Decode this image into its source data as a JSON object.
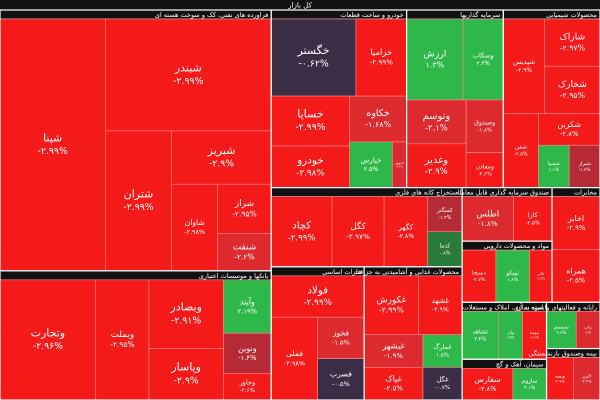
{
  "chart_data": {
    "type": "treemap",
    "title": "کل بازار",
    "sectors": [
      {
        "name": "فراورده های نفتی، کک و سوخت هسته ای",
        "tiles": [
          {
            "label": "شپنا",
            "size": 20,
            "change": -2.99,
            "value_label": "-۲.۹۹%"
          },
          {
            "label": "شبندر",
            "size": 14,
            "change": -2.99,
            "value_label": "-۲.۹۹%"
          },
          {
            "label": "شتران",
            "size": 7,
            "change": -2.99,
            "value_label": "-۲.۹۹%"
          },
          {
            "label": "شبریز",
            "size": 4,
            "change": -2.9,
            "value_label": "-۲.۹%"
          },
          {
            "label": "شاوان",
            "size": 3,
            "change": -2.98,
            "value_label": "-۲.۹۸%"
          },
          {
            "label": "شراز",
            "size": 2,
            "change": -2.95,
            "value_label": "-۲.۹۵%"
          },
          {
            "label": "شنفت",
            "size": 1.5,
            "change": -2.2,
            "value_label": "-۲.۲%"
          }
        ]
      },
      {
        "name": "بانکها و موسسات اعتباری",
        "tiles": [
          {
            "label": "وتجارت",
            "size": 9,
            "change": -2.96,
            "value_label": "-۲.۹۶%"
          },
          {
            "label": "وبملت",
            "size": 5,
            "change": -2.95,
            "value_label": "-۲.۹۵%"
          },
          {
            "label": "وبصادر",
            "size": 4,
            "change": -2.91,
            "value_label": "-۲.۹۱%"
          },
          {
            "label": "وپاسار",
            "size": 3,
            "change": -2.9,
            "value_label": "-۲.۹%"
          },
          {
            "label": "وآیند",
            "size": 2,
            "change": 2.19,
            "value_label": "۲.۱۹%"
          },
          {
            "label": "ونوین",
            "size": 1.5,
            "change": -1.4,
            "value_label": "-۱.۴%"
          },
          {
            "label": "وخاور",
            "size": 1,
            "change": -2.6,
            "value_label": "-۲.۶%"
          }
        ]
      },
      {
        "name": "خودرو و ساخت قطعات",
        "tiles": [
          {
            "label": "خگستر",
            "size": 5,
            "change": -0.62,
            "value_label": "-۰.۶۲%"
          },
          {
            "label": "خزامیا",
            "size": 3,
            "change": -2.99,
            "value_label": "-۲.۹۹%"
          },
          {
            "label": "خساپا",
            "size": 3,
            "change": -2.99,
            "value_label": "-۲.۹۹%"
          },
          {
            "label": "خودرو",
            "size": 2.5,
            "change": -2.98,
            "value_label": "-۲.۹۸%"
          },
          {
            "label": "خکاوه",
            "size": 2,
            "change": -1.68,
            "value_label": "-۱.۶۸%"
          },
          {
            "label": "خپارس",
            "size": 1.5,
            "change": 2.5,
            "value_label": "۲.۵%"
          },
          {
            "label": "خموتور",
            "size": 0.5,
            "change": -2.4,
            "value_label": "-۲.۴%"
          }
        ]
      },
      {
        "name": "سرمایه گذاریها",
        "tiles": [
          {
            "label": "ارزش",
            "size": 3.5,
            "change": 1.3,
            "value_label": "۱.۳%"
          },
          {
            "label": "وسکاب",
            "size": 2.5,
            "change": 2.4,
            "value_label": "۲.۴%"
          },
          {
            "label": "وتوسم",
            "size": 2,
            "change": -2.1,
            "value_label": "-۲.۱%"
          },
          {
            "label": "وغدیر",
            "size": 2,
            "change": -2.9,
            "value_label": "-۲.۹%"
          },
          {
            "label": "وصندوق",
            "size": 1.5,
            "change": -1.8,
            "value_label": "-۱.۸%"
          },
          {
            "label": "ومعادن",
            "size": 1,
            "change": -2.6,
            "value_label": "-۲.۶%"
          }
        ]
      },
      {
        "name": "محصولات شیمیایی",
        "tiles": [
          {
            "label": "شپدیس",
            "size": 3,
            "change": -2.9,
            "value_label": "-۲.۹%"
          },
          {
            "label": "شاراک",
            "size": 2,
            "change": -2.97,
            "value_label": "-۲.۹۷%"
          },
          {
            "label": "شخارک",
            "size": 2,
            "change": -2.95,
            "value_label": "-۲.۹۵%"
          },
          {
            "label": "شفن",
            "size": 2,
            "change": -2.5,
            "value_label": "-۲.۵%"
          },
          {
            "label": "شکربن",
            "size": 1.5,
            "change": -2.8,
            "value_label": "-۲.۸%"
          },
          {
            "label": "شسپا",
            "size": 1,
            "change": 1.1,
            "value_label": "۱.۱%"
          },
          {
            "label": "شیراز",
            "size": 1,
            "change": -1.2,
            "value_label": "-۱.۲%"
          }
        ]
      },
      {
        "name": "استخراج کانه های فلزی",
        "tiles": [
          {
            "label": "کچاد",
            "size": 3.5,
            "change": -2.99,
            "value_label": "-۲.۹۹%"
          },
          {
            "label": "کگل",
            "size": 3,
            "change": -2.97,
            "value_label": "-۲.۹۷%"
          },
          {
            "label": "کگهر",
            "size": 2.5,
            "change": -2.8,
            "value_label": "-۲.۸%"
          },
          {
            "label": "کمنگنز",
            "size": 1,
            "change": -1.2,
            "value_label": "-۱.۲%"
          },
          {
            "label": "کدما",
            "size": 1,
            "change": 0.8,
            "value_label": "۰.۸%"
          }
        ]
      },
      {
        "name": "فلزات اساسی",
        "tiles": [
          {
            "label": "فولاد",
            "size": 3,
            "change": -2.99,
            "value_label": "-۲.۹۹%"
          },
          {
            "label": "فملی",
            "size": 3,
            "change": -2.98,
            "value_label": "-۲.۹۸%"
          },
          {
            "label": "فخوز",
            "size": 1.5,
            "change": -1.5,
            "value_label": "-۱.۵%"
          },
          {
            "label": "فسرب",
            "size": 1.5,
            "change": -0.5,
            "value_label": "-۰.۵%"
          }
        ]
      },
      {
        "name": "محصولات غذایی و آشامیدنی به جز قند",
        "tiles": [
          {
            "label": "غکورش",
            "size": 2.5,
            "change": -2.99,
            "value_label": "-۲.۹۹%"
          },
          {
            "label": "غشهد",
            "size": 2,
            "change": -2.9,
            "value_label": "-۲.۹%"
          },
          {
            "label": "غبشهر",
            "size": 1.5,
            "change": -1.9,
            "value_label": "-۱.۹%"
          },
          {
            "label": "غپاک",
            "size": 1.5,
            "change": -2.5,
            "value_label": "-۲.۵%"
          },
          {
            "label": "غمارگ",
            "size": 1,
            "change": 1.5,
            "value_label": "۱.۵%"
          },
          {
            "label": "غگل",
            "size": 1,
            "change": -0.7,
            "value_label": "-۰.۷%"
          }
        ]
      },
      {
        "name": "صندوق سرمایه گذاری قابل معامله",
        "tiles": [
          {
            "label": "اطلس",
            "size": 2,
            "change": -1.8,
            "value_label": "-۱.۸%"
          },
          {
            "label": "کارا",
            "size": 1.5,
            "change": -2.5,
            "value_label": "-۲.۵%"
          }
        ]
      },
      {
        "name": "مواد و محصولات دارویی",
        "tiles": [
          {
            "label": "دسبحا",
            "size": 1.5,
            "change": -2.7,
            "value_label": "-۲.۷%"
          },
          {
            "label": "تیپیکو",
            "size": 1.5,
            "change": 1.8,
            "value_label": "۱.۸%"
          },
          {
            "label": "دالبر",
            "size": 1,
            "change": -2.5,
            "value_label": "-۲.۵%"
          }
        ]
      },
      {
        "name": "مخابرات",
        "tiles": [
          {
            "label": "اخابر",
            "size": 2,
            "change": -2.9,
            "value_label": "-۲.۹%"
          },
          {
            "label": "همراه",
            "size": 2,
            "change": -2.5,
            "value_label": "-۲.۵%"
          }
        ]
      },
      {
        "name": "انبوه سازی، املاک و مستغلات",
        "tiles": [
          {
            "label": "ثشاهد",
            "size": 1.5,
            "change": 2.4,
            "value_label": "۲.۴%"
          },
          {
            "label": "وآذر",
            "size": 1,
            "change": 1.5,
            "value_label": "۱.۵%"
          },
          {
            "label": "ثنوسا",
            "size": 1,
            "change": -2.6,
            "value_label": "-۲.۶%"
          }
        ]
      },
      {
        "name": "سیمان، آهک و گچ",
        "tiles": [
          {
            "label": "سفارس",
            "size": 1.5,
            "change": -2.8,
            "value_label": "-۲.۸%"
          },
          {
            "label": "ساروم",
            "size": 1,
            "change": 2.1,
            "value_label": "۲.۱%"
          }
        ]
      },
      {
        "name": "رایانه و فعالیتهای وابسته به آن",
        "tiles": [
          {
            "label": "سیستم",
            "size": 1,
            "change": 2.9,
            "value_label": "۲.۹%"
          },
          {
            "label": "رتاپ",
            "size": 0.8,
            "change": -2,
            "value_label": "-۲%"
          }
        ]
      },
      {
        "name": "بیمه وصندوق بازنشستگی",
        "tiles": [
          {
            "label": "وبیمه",
            "size": 1,
            "change": -2.7,
            "value_label": "-۲.۷%"
          },
          {
            "label": "البرز",
            "size": 1,
            "change": -2.4,
            "value_label": "-۲.۴%"
          }
        ]
      }
    ]
  }
}
